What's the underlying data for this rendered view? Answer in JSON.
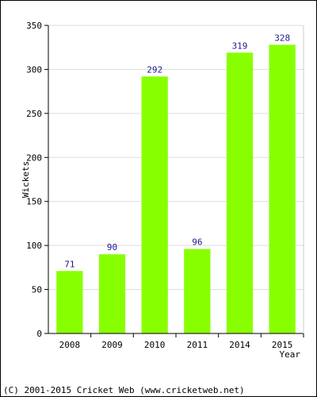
{
  "chart_data": {
    "type": "bar",
    "categories": [
      "2008",
      "2009",
      "2010",
      "2011",
      "2014",
      "2015"
    ],
    "values": [
      71,
      90,
      292,
      96,
      319,
      328
    ],
    "xlabel": "Year",
    "ylabel": "Wickets",
    "ylim": [
      0,
      350
    ],
    "yticks": [
      0,
      50,
      100,
      150,
      200,
      250,
      300,
      350
    ],
    "grid": true,
    "bar_color": "#88ff00",
    "label_color": "#1a1a8c"
  },
  "footer": {
    "copyright": "(C) 2001-2015 Cricket Web (www.cricketweb.net)"
  }
}
